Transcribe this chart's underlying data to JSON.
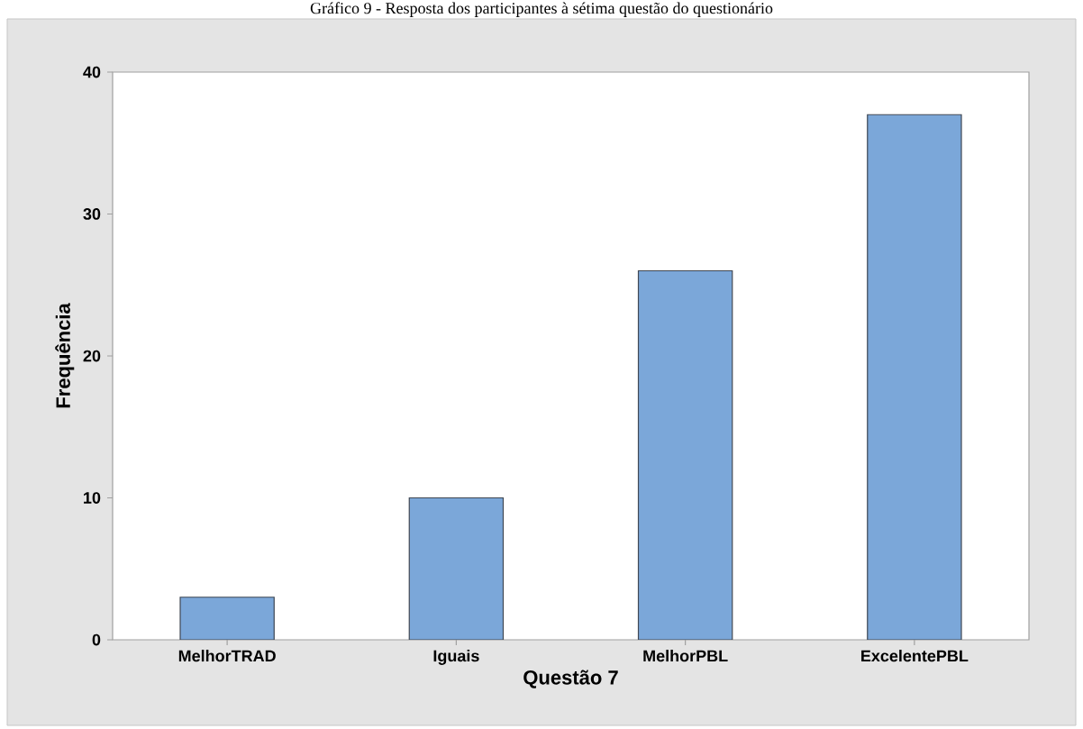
{
  "chart_data": {
    "type": "bar",
    "title": "Gráfico 9 - Resposta dos participantes à sétima questão do questionário",
    "xlabel": "Questão 7",
    "ylabel": "Frequência",
    "categories": [
      "MelhorTRAD",
      "Iguais",
      "MelhorPBL",
      "ExcelentePBL"
    ],
    "values": [
      3,
      10,
      26,
      37
    ],
    "color": "#7ba7d9",
    "ylim": [
      0,
      40
    ],
    "yticks": [
      0,
      10,
      20,
      30,
      40
    ]
  }
}
